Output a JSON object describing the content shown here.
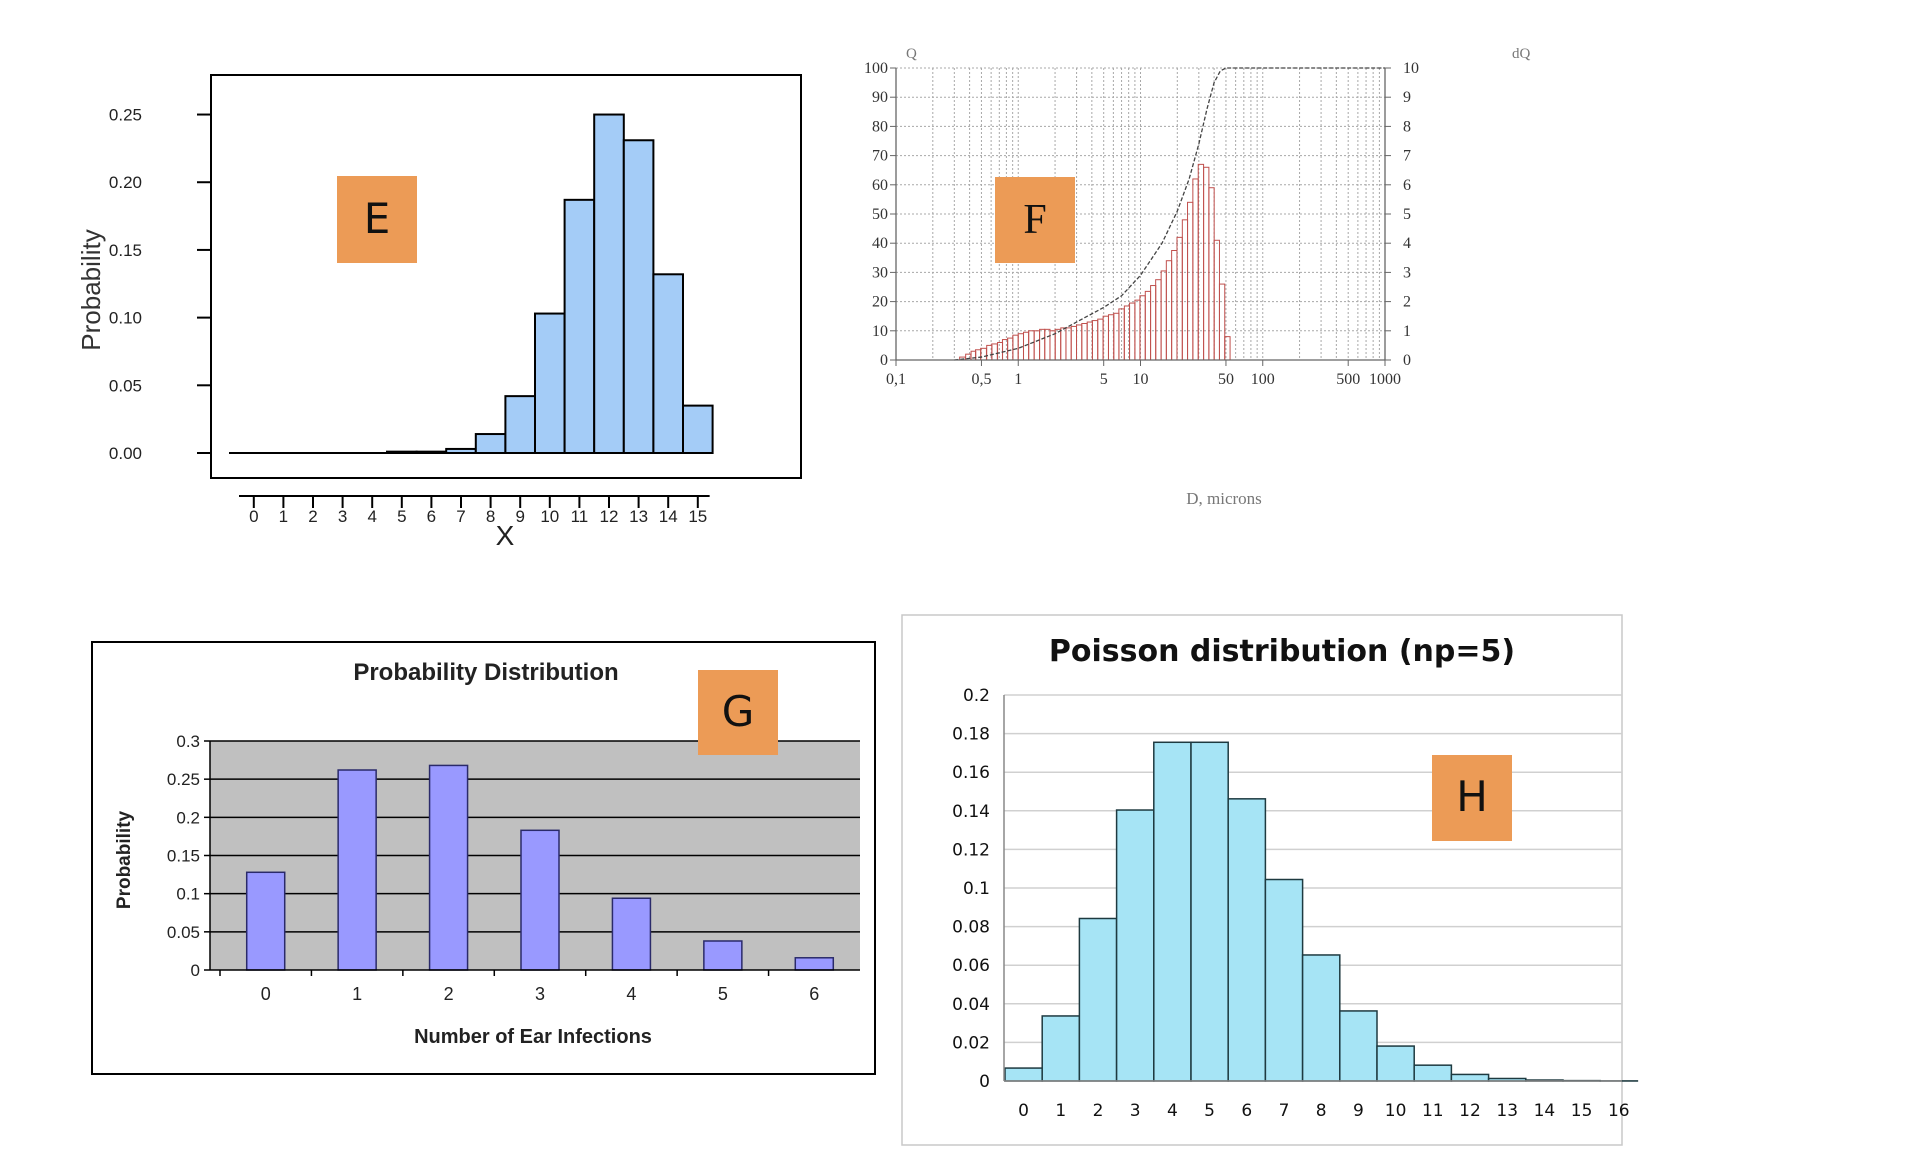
{
  "badge_color": "#ec9b56",
  "chart_data": [
    {
      "id": "E",
      "type": "bar",
      "badge": "E",
      "title": "",
      "xlabel": "X",
      "ylabel": "Probability",
      "categories": [
        "0",
        "1",
        "2",
        "3",
        "4",
        "5",
        "6",
        "7",
        "8",
        "9",
        "10",
        "11",
        "12",
        "13",
        "14",
        "15"
      ],
      "values": [
        0,
        0,
        0,
        0,
        0,
        0.001,
        0.001,
        0.003,
        0.014,
        0.042,
        0.103,
        0.187,
        0.25,
        0.231,
        0.132,
        0.035
      ],
      "ylim": [
        0,
        0.26
      ],
      "yticks": [
        0,
        0.05,
        0.1,
        0.15,
        0.2,
        0.25
      ],
      "ytick_labels": [
        "0.00",
        "0.05",
        "0.10",
        "0.15",
        "0.20",
        "0.25"
      ],
      "color": "#a4ccf7",
      "grid": false
    },
    {
      "id": "F",
      "type": "bar",
      "badge": "F",
      "title": "",
      "xlabel": "D, microns",
      "ylabel_left": "Q",
      "ylabel_right": "dQ",
      "xscale": "log",
      "xlim": [
        0.1,
        1000
      ],
      "ylim_left": [
        0,
        100
      ],
      "ylim_right": [
        0,
        10
      ],
      "left_ticks": [
        "0",
        "10",
        "20",
        "30",
        "40",
        "50",
        "60",
        "70",
        "80",
        "90",
        "100"
      ],
      "right_ticks": [
        "0",
        "1",
        "2",
        "3",
        "4",
        "5",
        "6",
        "7",
        "8",
        "9",
        "10"
      ],
      "xtick_values": [
        0.1,
        0.5,
        1,
        5,
        10,
        50,
        100,
        500,
        1000
      ],
      "xtick_labels": [
        "0,1",
        "0,5",
        "1",
        "5",
        "10",
        "50",
        "100",
        "500",
        "1000"
      ],
      "histogram_color": "#c0504d",
      "histogram": {
        "D": [
          0.35,
          0.39,
          0.43,
          0.47,
          0.52,
          0.58,
          0.64,
          0.71,
          0.78,
          0.86,
          0.95,
          1.05,
          1.16,
          1.28,
          1.42,
          1.57,
          1.73,
          1.91,
          2.11,
          2.34,
          2.58,
          2.85,
          3.15,
          3.48,
          3.85,
          4.25,
          4.7,
          5.2,
          5.75,
          6.35,
          7.0,
          7.75,
          8.55,
          9.45,
          10.4,
          11.5,
          12.7,
          14.0,
          15.5,
          17.1,
          18.9,
          20.9,
          23.1,
          25.5,
          28.2,
          31.2,
          34.5,
          38.1,
          42.1,
          46.5,
          51.4
        ],
        "dQ": [
          0.1,
          0.2,
          0.3,
          0.35,
          0.4,
          0.5,
          0.55,
          0.6,
          0.7,
          0.75,
          0.85,
          0.9,
          0.95,
          1.0,
          1.0,
          1.05,
          1.05,
          1.0,
          1.05,
          1.1,
          1.1,
          1.15,
          1.2,
          1.25,
          1.3,
          1.35,
          1.4,
          1.5,
          1.55,
          1.6,
          1.75,
          1.85,
          1.95,
          2.05,
          2.2,
          2.35,
          2.55,
          2.75,
          3.05,
          3.4,
          3.75,
          4.2,
          4.8,
          5.4,
          6.2,
          6.7,
          6.6,
          5.9,
          4.1,
          2.6,
          0.8
        ]
      },
      "cumulative": {
        "D": [
          0.3,
          0.5,
          1,
          2,
          3,
          5,
          7,
          10,
          15,
          20,
          25,
          30,
          35,
          40,
          45,
          50,
          1000
        ],
        "Q": [
          0,
          1,
          4,
          9,
          13,
          18,
          22,
          29,
          40,
          51,
          62,
          74,
          86,
          95,
          99,
          100,
          100
        ]
      }
    },
    {
      "id": "G",
      "type": "bar",
      "badge": "G",
      "title": "Probability Distribution",
      "xlabel": "Number of Ear Infections",
      "ylabel": "Probability",
      "categories": [
        "0",
        "1",
        "2",
        "3",
        "4",
        "5",
        "6"
      ],
      "values": [
        0.128,
        0.262,
        0.268,
        0.183,
        0.094,
        0.038,
        0.016
      ],
      "ylim": [
        0,
        0.3
      ],
      "ytick_labels": [
        "0",
        "0.05",
        "0.1",
        "0.15",
        "0.2",
        "0.25",
        "0.3"
      ],
      "color": "#9999ff",
      "plot_bg": "#c0c0c0",
      "grid": true
    },
    {
      "id": "H",
      "type": "bar",
      "badge": "H",
      "title": "Poisson distribution (np=5)",
      "xlabel": "",
      "ylabel": "",
      "categories": [
        "0",
        "1",
        "2",
        "3",
        "4",
        "5",
        "6",
        "7",
        "8",
        "9",
        "10",
        "11",
        "12",
        "13",
        "14",
        "15",
        "16"
      ],
      "values": [
        0.0067,
        0.0337,
        0.0842,
        0.1404,
        0.1755,
        0.1755,
        0.1462,
        0.1044,
        0.0653,
        0.0363,
        0.0181,
        0.0082,
        0.0034,
        0.0013,
        0.0005,
        0.0002,
        5e-05
      ],
      "ylim": [
        0,
        0.2
      ],
      "ytick_labels": [
        "0",
        "0.02",
        "0.04",
        "0.06",
        "0.08",
        "0.1",
        "0.12",
        "0.14",
        "0.16",
        "0.18",
        "0.2"
      ],
      "color": "#a6e4f5",
      "grid": true
    }
  ]
}
